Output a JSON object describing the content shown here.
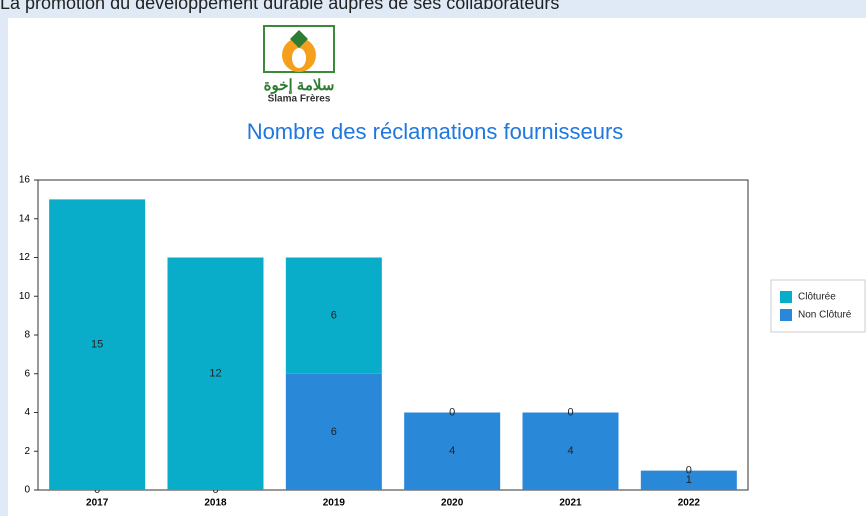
{
  "header": {
    "text": "La promotion du développement durable auprès de ses collaborateurs"
  },
  "logo": {
    "arabic": "سلامة إخوة",
    "latin": "Slama Frères"
  },
  "chart_data": {
    "type": "stacked_bar",
    "title": "Nombre des réclamations fournisseurs",
    "categories": [
      "2017",
      "2018",
      "2019",
      "2020",
      "2021",
      "2022"
    ],
    "series": [
      {
        "name": "Clôturée",
        "color": "#0aadc9",
        "values": [
          15,
          12,
          6,
          0,
          0,
          0
        ]
      },
      {
        "name": "Non Clôturé",
        "color": "#2a88d9",
        "values": [
          0,
          0,
          6,
          4,
          4,
          1
        ]
      }
    ],
    "ylim": [
      0,
      16
    ],
    "yticks": [
      0,
      2,
      4,
      6,
      8,
      10,
      12,
      14,
      16
    ],
    "legend": "right"
  }
}
